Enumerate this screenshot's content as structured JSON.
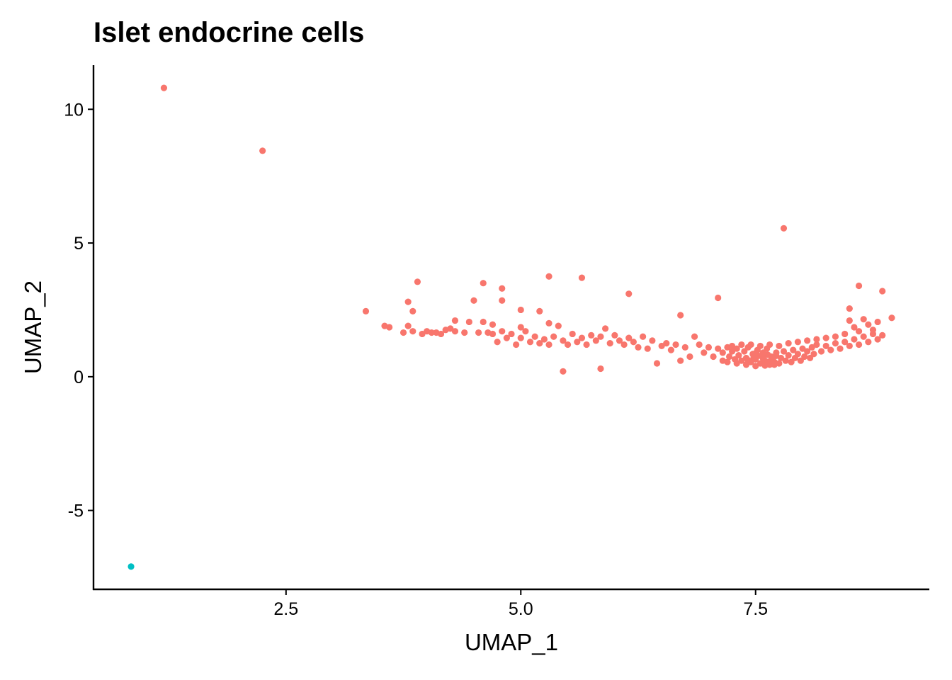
{
  "chart_data": {
    "type": "scatter",
    "title": "Islet endocrine cells",
    "xlabel": "UMAP_1",
    "ylabel": "UMAP_2",
    "xlim": [
      0.45,
      9.35
    ],
    "ylim": [
      -7.95,
      11.65
    ],
    "xticks": [
      2.5,
      5.0,
      7.5
    ],
    "xtick_labels": [
      "2.5",
      "5.0",
      "7.5"
    ],
    "yticks": [
      -5,
      0,
      5,
      10
    ],
    "ytick_labels": [
      "-5",
      "0",
      "5",
      "10"
    ],
    "grid": false,
    "legend": "none",
    "series": [
      {
        "color": "#F8766D",
        "points": [
          [
            1.2,
            10.8
          ],
          [
            2.25,
            8.45
          ],
          [
            7.8,
            5.55
          ],
          [
            5.3,
            3.75
          ],
          [
            5.65,
            3.7
          ],
          [
            4.6,
            3.5
          ],
          [
            3.9,
            3.55
          ],
          [
            4.8,
            3.3
          ],
          [
            6.15,
            3.1
          ],
          [
            7.1,
            2.95
          ],
          [
            8.6,
            3.4
          ],
          [
            8.85,
            3.2
          ],
          [
            3.35,
            2.45
          ],
          [
            3.8,
            2.8
          ],
          [
            4.5,
            2.85
          ],
          [
            4.8,
            2.85
          ],
          [
            5.0,
            2.5
          ],
          [
            5.2,
            2.45
          ],
          [
            6.7,
            2.3
          ],
          [
            8.5,
            2.55
          ],
          [
            8.95,
            2.2
          ],
          [
            8.8,
            2.05
          ],
          [
            3.55,
            1.9
          ],
          [
            3.6,
            1.85
          ],
          [
            3.75,
            1.65
          ],
          [
            3.8,
            1.9
          ],
          [
            3.85,
            2.45
          ],
          [
            3.85,
            1.7
          ],
          [
            3.95,
            1.6
          ],
          [
            4.0,
            1.7
          ],
          [
            4.05,
            1.65
          ],
          [
            4.1,
            1.65
          ],
          [
            4.15,
            1.6
          ],
          [
            4.2,
            1.75
          ],
          [
            4.25,
            1.8
          ],
          [
            4.3,
            2.1
          ],
          [
            4.3,
            1.7
          ],
          [
            4.4,
            1.65
          ],
          [
            4.45,
            2.05
          ],
          [
            4.55,
            1.65
          ],
          [
            4.6,
            2.05
          ],
          [
            4.65,
            1.65
          ],
          [
            4.7,
            1.6
          ],
          [
            4.7,
            1.95
          ],
          [
            4.75,
            1.3
          ],
          [
            4.8,
            1.7
          ],
          [
            4.85,
            1.45
          ],
          [
            4.9,
            1.6
          ],
          [
            4.95,
            1.2
          ],
          [
            5.0,
            1.85
          ],
          [
            5.0,
            1.45
          ],
          [
            5.05,
            1.7
          ],
          [
            5.1,
            1.3
          ],
          [
            5.15,
            1.5
          ],
          [
            5.2,
            1.25
          ],
          [
            5.25,
            1.4
          ],
          [
            5.3,
            2.0
          ],
          [
            5.3,
            1.2
          ],
          [
            5.35,
            1.5
          ],
          [
            5.4,
            1.9
          ],
          [
            5.45,
            1.35
          ],
          [
            5.5,
            1.2
          ],
          [
            5.55,
            1.6
          ],
          [
            5.6,
            1.3
          ],
          [
            5.65,
            1.45
          ],
          [
            5.7,
            1.2
          ],
          [
            5.75,
            1.55
          ],
          [
            5.8,
            1.35
          ],
          [
            5.85,
            1.5
          ],
          [
            5.9,
            1.8
          ],
          [
            5.95,
            1.25
          ],
          [
            6.0,
            1.55
          ],
          [
            6.05,
            1.35
          ],
          [
            6.1,
            1.2
          ],
          [
            6.15,
            1.45
          ],
          [
            6.2,
            1.3
          ],
          [
            6.25,
            1.1
          ],
          [
            6.3,
            1.5
          ],
          [
            6.35,
            1.05
          ],
          [
            6.4,
            1.35
          ],
          [
            6.45,
            0.5
          ],
          [
            6.5,
            1.15
          ],
          [
            6.55,
            1.25
          ],
          [
            6.6,
            1.0
          ],
          [
            6.65,
            1.2
          ],
          [
            6.7,
            0.6
          ],
          [
            6.75,
            1.1
          ],
          [
            6.8,
            0.75
          ],
          [
            6.85,
            1.5
          ],
          [
            6.9,
            1.2
          ],
          [
            6.95,
            0.9
          ],
          [
            7.0,
            1.1
          ],
          [
            7.05,
            0.75
          ],
          [
            7.1,
            1.05
          ],
          [
            5.45,
            0.2
          ],
          [
            5.85,
            0.3
          ],
          [
            7.15,
            0.9
          ],
          [
            7.2,
            1.1
          ],
          [
            7.22,
            0.75
          ],
          [
            7.25,
            0.95
          ],
          [
            7.28,
            0.65
          ],
          [
            7.3,
            1.05
          ],
          [
            7.32,
            0.8
          ],
          [
            7.35,
            0.6
          ],
          [
            7.38,
            0.95
          ],
          [
            7.4,
            0.7
          ],
          [
            7.42,
            1.1
          ],
          [
            7.45,
            0.55
          ],
          [
            7.47,
            0.85
          ],
          [
            7.5,
            0.65
          ],
          [
            7.52,
            1.0
          ],
          [
            7.55,
            0.5
          ],
          [
            7.57,
            0.8
          ],
          [
            7.6,
            0.6
          ],
          [
            7.62,
            1.05
          ],
          [
            7.65,
            0.45
          ],
          [
            7.67,
            0.75
          ],
          [
            7.7,
            0.55
          ],
          [
            7.72,
            0.9
          ],
          [
            7.75,
            0.5
          ],
          [
            7.77,
            0.7
          ],
          [
            7.8,
            0.95
          ],
          [
            7.82,
            0.6
          ],
          [
            7.85,
            0.8
          ],
          [
            7.88,
            0.55
          ],
          [
            7.9,
            1.0
          ],
          [
            7.92,
            0.7
          ],
          [
            7.95,
            0.85
          ],
          [
            7.98,
            0.6
          ],
          [
            8.0,
            1.05
          ],
          [
            8.02,
            0.75
          ],
          [
            8.05,
            0.95
          ],
          [
            8.08,
            0.7
          ],
          [
            8.1,
            1.1
          ],
          [
            8.12,
            0.85
          ],
          [
            8.15,
            1.2
          ],
          [
            8.2,
            0.95
          ],
          [
            8.25,
            1.15
          ],
          [
            8.3,
            1.0
          ],
          [
            8.35,
            1.25
          ],
          [
            8.4,
            1.05
          ],
          [
            8.45,
            1.3
          ],
          [
            8.5,
            1.15
          ],
          [
            8.55,
            1.4
          ],
          [
            8.6,
            1.2
          ],
          [
            8.65,
            1.5
          ],
          [
            8.7,
            1.3
          ],
          [
            8.75,
            1.6
          ],
          [
            8.8,
            1.4
          ],
          [
            8.85,
            1.55
          ],
          [
            8.5,
            2.1
          ],
          [
            8.55,
            1.85
          ],
          [
            8.6,
            1.7
          ],
          [
            8.65,
            2.15
          ],
          [
            8.7,
            1.95
          ],
          [
            8.75,
            1.75
          ],
          [
            7.3,
            0.5
          ],
          [
            7.4,
            0.45
          ],
          [
            7.5,
            0.4
          ],
          [
            7.6,
            0.42
          ],
          [
            7.7,
            0.45
          ],
          [
            7.45,
            1.2
          ],
          [
            7.55,
            1.15
          ],
          [
            7.65,
            1.2
          ],
          [
            7.25,
            1.15
          ],
          [
            7.35,
            1.2
          ],
          [
            7.15,
            0.6
          ],
          [
            7.2,
            0.55
          ],
          [
            7.75,
            1.15
          ],
          [
            7.85,
            1.25
          ],
          [
            7.95,
            1.3
          ],
          [
            8.05,
            1.35
          ],
          [
            8.15,
            1.4
          ],
          [
            8.25,
            1.45
          ],
          [
            8.35,
            1.5
          ],
          [
            8.45,
            1.6
          ],
          [
            7.48,
            0.72
          ],
          [
            7.53,
            0.78
          ],
          [
            7.58,
            0.68
          ],
          [
            7.63,
            0.82
          ],
          [
            7.68,
            0.66
          ],
          [
            7.58,
            0.9
          ],
          [
            7.5,
            0.88
          ],
          [
            7.42,
            0.62
          ],
          [
            7.66,
            0.6
          ],
          [
            7.72,
            0.78
          ]
        ]
      },
      {
        "color": "#00BFC4",
        "points": [
          [
            0.85,
            -7.1
          ]
        ]
      }
    ]
  }
}
